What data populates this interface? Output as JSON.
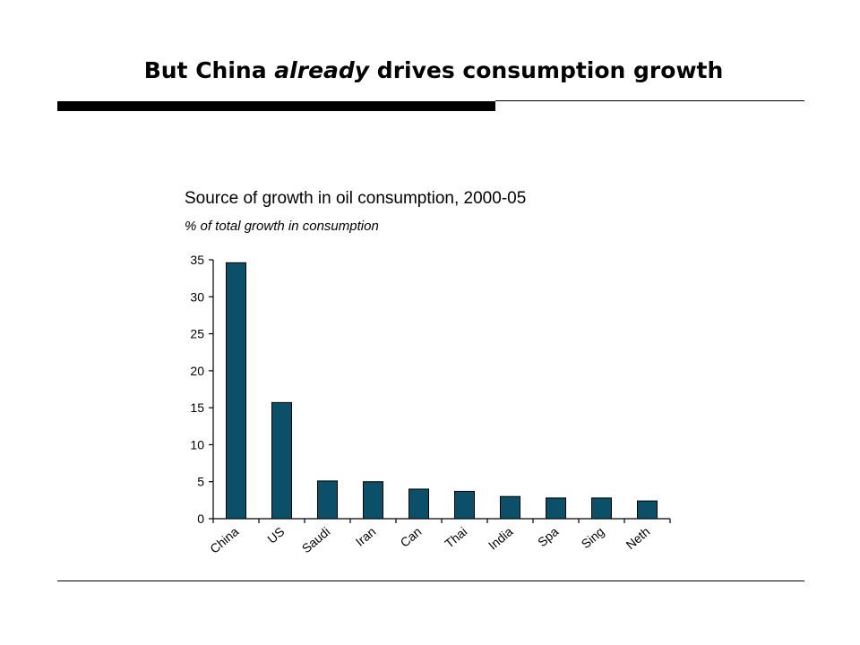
{
  "slide": {
    "title_before": "But China ",
    "title_emphasis": "already",
    "title_after": " drives consumption growth"
  },
  "colors": {
    "bar": "#0b5068",
    "rule": "#000000"
  },
  "chart_data": {
    "type": "bar",
    "title": "Source of growth in oil consumption, 2000-05",
    "subtitle": "% of total growth in consumption",
    "xlabel": "",
    "ylabel": "",
    "categories": [
      "China",
      "US",
      "Saudi",
      "Iran",
      "Can",
      "Thai",
      "India",
      "Spa",
      "Sing",
      "Neth"
    ],
    "values": [
      34.6,
      15.7,
      5.1,
      5.0,
      4.0,
      3.7,
      3.0,
      2.8,
      2.8,
      2.4
    ],
    "ylim": [
      0,
      35
    ],
    "yticks": [
      0,
      5,
      10,
      15,
      20,
      25,
      30,
      35
    ],
    "grid": false,
    "legend": "none"
  }
}
